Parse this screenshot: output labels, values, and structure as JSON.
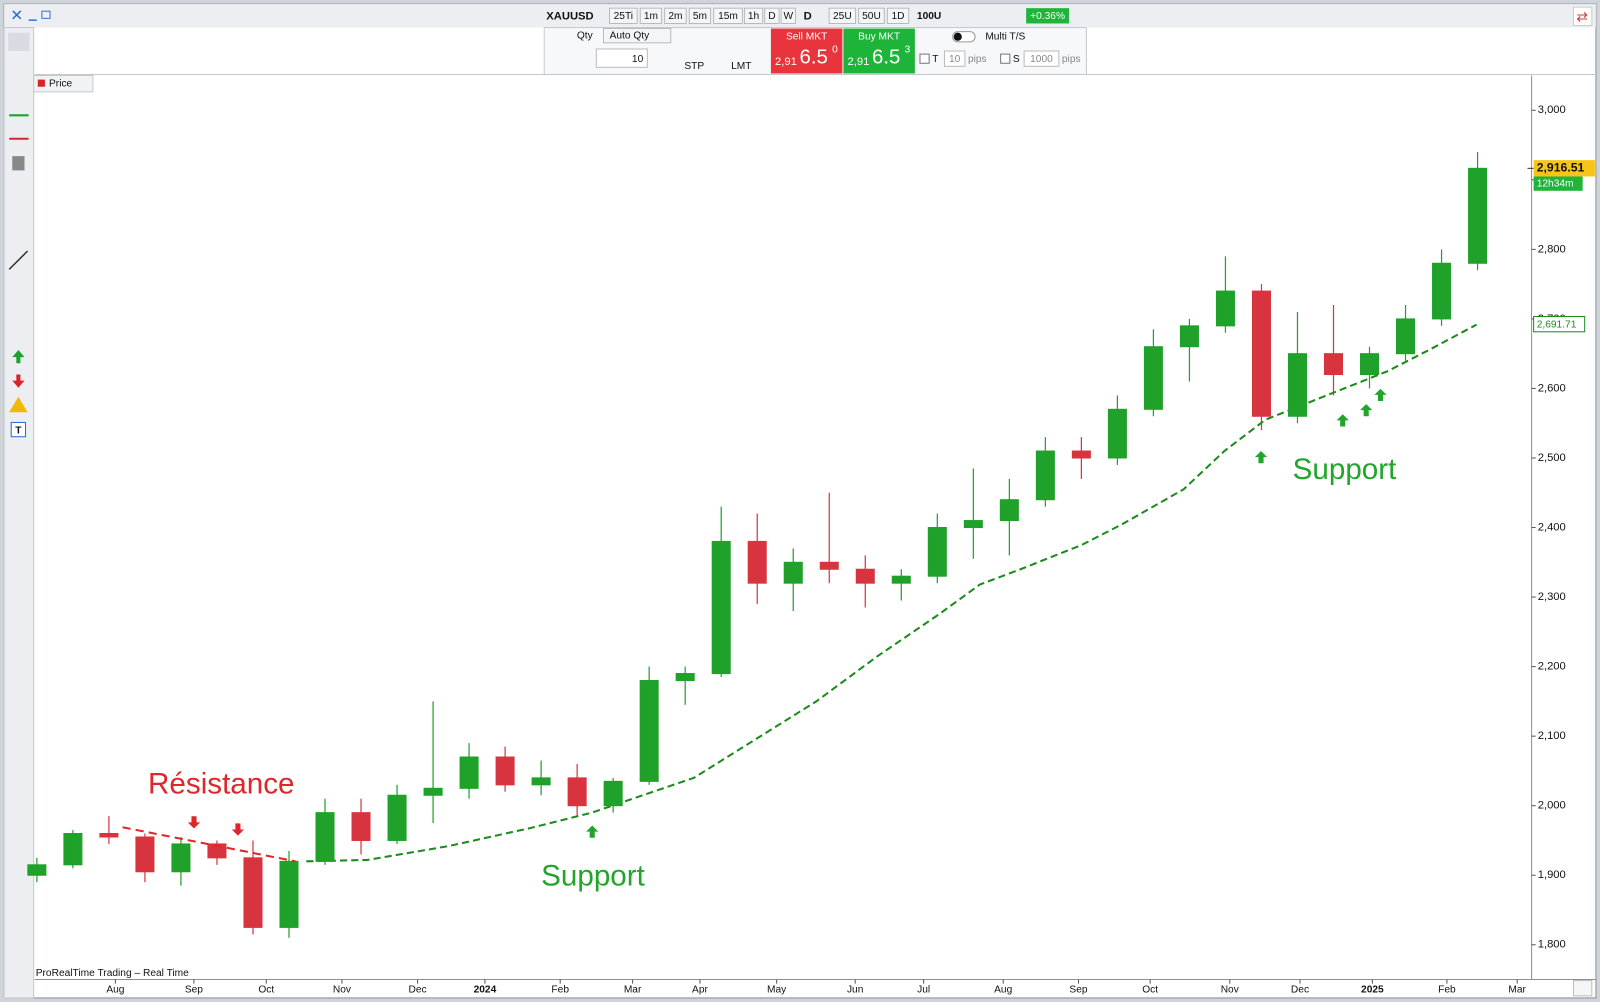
{
  "toolbar": {
    "symbol": "XAUUSD",
    "timeframes": [
      "25Ti",
      "1m",
      "2m",
      "5m",
      "15m",
      "1h",
      "D",
      "W"
    ],
    "period": "D",
    "units": [
      "25U",
      "50U",
      "1D"
    ],
    "count": "100U",
    "change": "+0.36%"
  },
  "order_panel": {
    "qty_label": "Qty",
    "auto_qty": "Auto Qty",
    "qty": 10,
    "stp": "STP",
    "lmt": "LMT",
    "sell": {
      "label": "Sell MKT",
      "prefix": "2,91",
      "main": "6.5",
      "sup": "0"
    },
    "buy": {
      "label": "Buy MKT",
      "prefix": "2,91",
      "main": "6.5",
      "sup": "3"
    },
    "take_profit": {
      "label": "T",
      "value": 10,
      "unit": "pips"
    },
    "stop": {
      "label": "S",
      "value": 1000,
      "unit": "pips"
    },
    "multi": "Multi T/S"
  },
  "chart_data": {
    "type": "candlestick",
    "panel_label": "Price",
    "footer": "ProRealTime Trading – Real Time",
    "open": [
      1900,
      1915,
      1960,
      1955,
      1905,
      1945,
      1925,
      1825,
      1920,
      1990,
      1950,
      2015,
      2025,
      2070,
      2030,
      2040,
      2000,
      2035,
      2180,
      2190,
      2380,
      2320,
      2350,
      2340,
      2320,
      2330,
      2400,
      2410,
      2440,
      2510,
      2500,
      2570,
      2660,
      2690,
      2740,
      2560,
      2650,
      2620,
      2650,
      2700,
      2780
    ],
    "high": [
      1925,
      1965,
      1985,
      1960,
      1955,
      1950,
      1950,
      1935,
      2010,
      2010,
      2030,
      2150,
      2090,
      2085,
      2065,
      2060,
      2040,
      2200,
      2200,
      2430,
      2420,
      2370,
      2450,
      2360,
      2340,
      2420,
      2485,
      2470,
      2530,
      2530,
      2590,
      2685,
      2700,
      2790,
      2750,
      2710,
      2720,
      2660,
      2720,
      2800,
      2940
    ],
    "low": [
      1890,
      1910,
      1945,
      1890,
      1885,
      1915,
      1815,
      1810,
      1915,
      1930,
      1945,
      1975,
      2010,
      2020,
      2015,
      1985,
      1990,
      2030,
      2145,
      2185,
      2290,
      2280,
      2320,
      2285,
      2295,
      2320,
      2355,
      2360,
      2430,
      2470,
      2490,
      2560,
      2610,
      2680,
      2540,
      2550,
      2590,
      2600,
      2640,
      2690,
      2770
    ],
    "close": [
      1915,
      1960,
      1955,
      1905,
      1945,
      1925,
      1825,
      1920,
      1990,
      1950,
      2015,
      2025,
      2070,
      2030,
      2040,
      2000,
      2035,
      2180,
      2190,
      2380,
      2320,
      2350,
      2340,
      2320,
      2330,
      2400,
      2410,
      2440,
      2510,
      2500,
      2570,
      2660,
      2690,
      2740,
      2560,
      2650,
      2620,
      2650,
      2700,
      2780,
      2916.51
    ],
    "up_color": "#1fa12a",
    "down_color": "#d8343f",
    "xlim": [
      -0.06,
      41.5
    ],
    "ylim": [
      1750,
      3050
    ],
    "xticks": [
      {
        "value": 2.18,
        "label": "Aug"
      },
      {
        "value": 4.36,
        "label": "Sep"
      },
      {
        "value": 6.37,
        "label": "Oct"
      },
      {
        "value": 8.47,
        "label": "Nov"
      },
      {
        "value": 10.57,
        "label": "Dec"
      },
      2024,
      {
        "value": 14.53,
        "label": "Feb"
      },
      {
        "value": 16.54,
        "label": "Mar"
      },
      {
        "value": 18.41,
        "label": "Apr"
      },
      {
        "value": 20.54,
        "label": "May"
      },
      {
        "value": 22.72,
        "label": "Jun"
      },
      {
        "value": 24.62,
        "label": "Jul"
      },
      {
        "value": 26.83,
        "label": "Aug"
      },
      {
        "value": 28.92,
        "label": "Sep"
      },
      {
        "value": 30.91,
        "label": "Oct"
      },
      {
        "value": 33.12,
        "label": "Nov"
      },
      {
        "value": 35.07,
        "label": "Dec"
      },
      2025,
      {
        "value": 39.15,
        "label": "Feb"
      },
      {
        "value": 41.1,
        "label": "Mar"
      }
    ],
    "xtick_years": [
      {
        "value": 12.44,
        "label": "2024"
      },
      {
        "value": 37.08,
        "label": "2025"
      }
    ],
    "yticks": [
      {
        "value": 1800,
        "label": "1,800"
      },
      {
        "value": 1900,
        "label": "1,900"
      },
      {
        "value": 2000,
        "label": "2,000"
      },
      {
        "value": 2100,
        "label": "2,100"
      },
      {
        "value": 2200,
        "label": "2,200"
      },
      {
        "value": 2300,
        "label": "2,300"
      },
      {
        "value": 2400,
        "label": "2,400"
      },
      {
        "value": 2500,
        "label": "2,500"
      },
      {
        "value": 2600,
        "label": "2,600"
      },
      {
        "value": 2700,
        "label": "2,700"
      },
      {
        "value": 2800,
        "label": "2,800"
      },
      {
        "value": 2900,
        "label": "2,900"
      },
      {
        "value": 3000,
        "label": "3,000"
      }
    ],
    "moving_average": {
      "color": "#1d8a1d",
      "x": [
        7.48,
        9.18,
        11.44,
        13.71,
        15.41,
        16.54,
        18.24,
        19.94,
        21.64,
        23.34,
        25.04,
        26.18,
        27.31,
        29.01,
        30.14,
        31.84,
        32.97,
        34.11,
        35.81,
        37.51,
        38.64,
        39.97
      ],
      "values": [
        1920,
        1922,
        1942,
        1968,
        1990,
        2010,
        2040,
        2095,
        2150,
        2215,
        2275,
        2318,
        2340,
        2375,
        2405,
        2455,
        2510,
        2555,
        2590,
        2625,
        2655,
        2691.71
      ]
    },
    "resistance": {
      "color": "#e0262b",
      "x": [
        2.38,
        7.18
      ],
      "values": [
        1969,
        1920
      ]
    },
    "annotations": [
      {
        "text": "Résistance",
        "color": "#e0262b"
      },
      {
        "text": "Support",
        "color": "#22a52a"
      },
      {
        "text": "Support",
        "color": "#22a52a"
      }
    ],
    "last_price": {
      "value": 2916.51,
      "label": "2,916.51",
      "timer": "12h34m"
    },
    "ma_last": {
      "value": 2691.71,
      "label": "2,691.71"
    }
  }
}
